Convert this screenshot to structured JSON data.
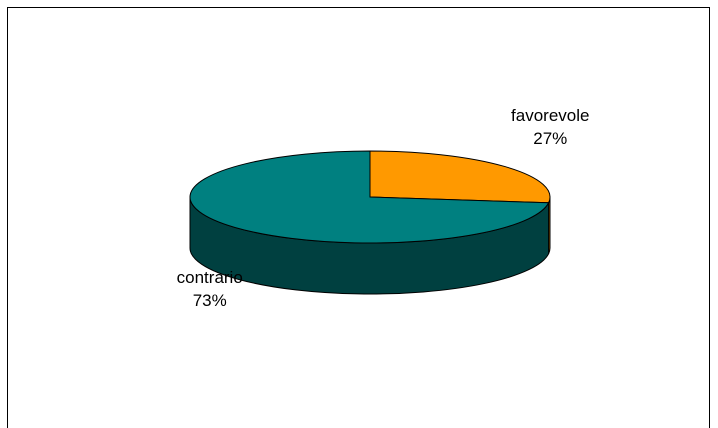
{
  "chart_data": {
    "type": "pie",
    "variant": "3d",
    "title": "",
    "legend": "none",
    "slices": [
      {
        "name": "favorevole",
        "value": 27,
        "label": "favorevole",
        "pct_label": "27%",
        "color": "#FF9900",
        "side_color": "#B36B00"
      },
      {
        "name": "contrario",
        "value": 73,
        "label": "contrario",
        "pct_label": "73%",
        "color": "#008080",
        "side_color": "#004040"
      }
    ]
  }
}
